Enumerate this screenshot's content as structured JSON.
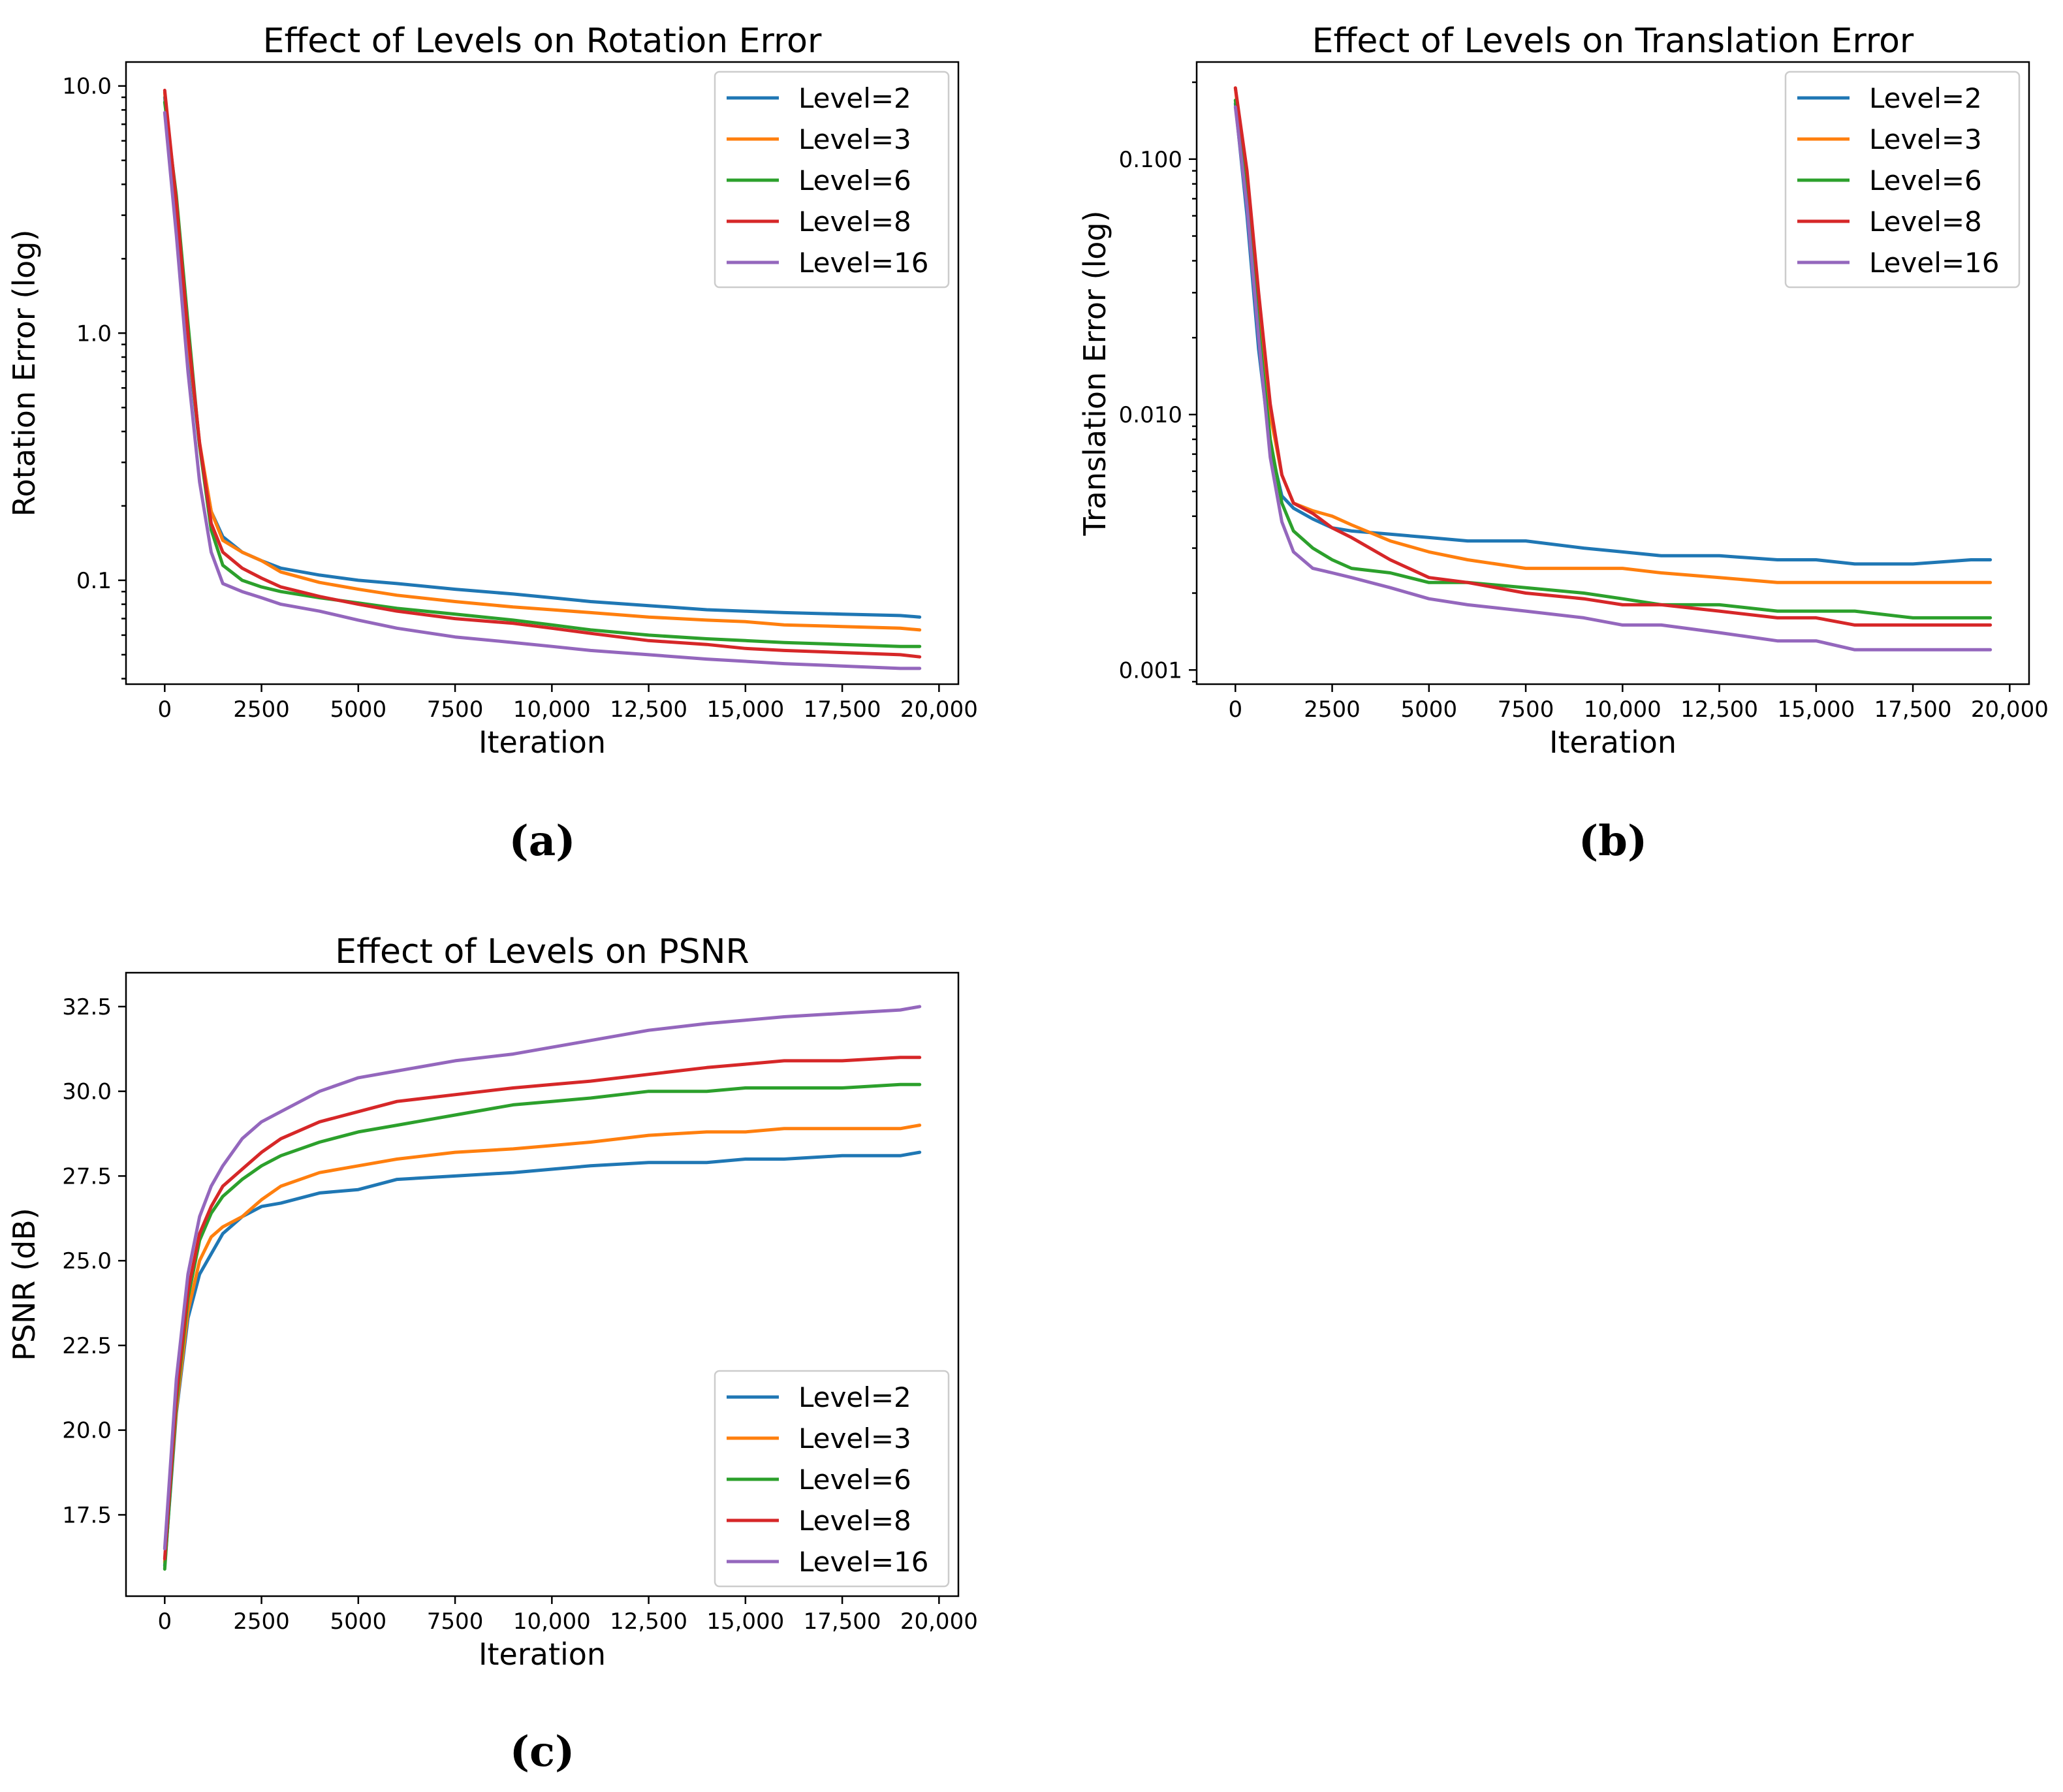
{
  "chart_data": [
    {
      "id": "a",
      "type": "line",
      "title": "Effect of Levels on Rotation Error",
      "xlabel": "Iteration",
      "ylabel": "Rotation Error (log)",
      "yscale": "log",
      "xlim": [
        -1000,
        20500
      ],
      "ylim": [
        0.038,
        12.5
      ],
      "x_ticks": [
        0,
        2500,
        5000,
        7500,
        10000,
        12500,
        15000,
        17500,
        20000
      ],
      "x_tick_labels": [
        "0",
        "2500",
        "5000",
        "7500",
        "10,000",
        "12,500",
        "15,000",
        "17,500",
        "20,000"
      ],
      "y_ticks": [
        0.1,
        1.0,
        10.0
      ],
      "y_tick_labels": [
        "0.1",
        "1.0",
        "10.0"
      ],
      "legend_position": "top-right",
      "caption": "(a)",
      "x": [
        0,
        300,
        600,
        900,
        1200,
        1500,
        2000,
        2500,
        3000,
        4000,
        5000,
        6000,
        7500,
        9000,
        10000,
        11000,
        12500,
        14000,
        15000,
        16000,
        17500,
        19000,
        19500
      ],
      "series": [
        {
          "name": "Level=2",
          "color": "#1f77b4",
          "values": [
            9.0,
            3.0,
            0.9,
            0.35,
            0.19,
            0.15,
            0.13,
            0.12,
            0.112,
            0.105,
            0.1,
            0.097,
            0.092,
            0.088,
            0.085,
            0.082,
            0.079,
            0.076,
            0.075,
            0.074,
            0.073,
            0.072,
            0.071
          ]
        },
        {
          "name": "Level=3",
          "color": "#ff7f0e",
          "values": [
            9.4,
            3.2,
            0.95,
            0.36,
            0.19,
            0.145,
            0.13,
            0.12,
            0.108,
            0.098,
            0.092,
            0.087,
            0.082,
            0.078,
            0.076,
            0.074,
            0.071,
            0.069,
            0.068,
            0.066,
            0.065,
            0.064,
            0.063
          ]
        },
        {
          "name": "Level=6",
          "color": "#2ca02c",
          "values": [
            8.6,
            3.6,
            1.1,
            0.35,
            0.16,
            0.115,
            0.1,
            0.094,
            0.09,
            0.085,
            0.081,
            0.077,
            0.073,
            0.069,
            0.066,
            0.063,
            0.06,
            0.058,
            0.057,
            0.056,
            0.055,
            0.054,
            0.054
          ]
        },
        {
          "name": "Level=8",
          "color": "#d62728",
          "values": [
            9.6,
            3.4,
            1.0,
            0.36,
            0.17,
            0.13,
            0.112,
            0.102,
            0.094,
            0.086,
            0.08,
            0.075,
            0.07,
            0.067,
            0.064,
            0.061,
            0.057,
            0.055,
            0.053,
            0.052,
            0.051,
            0.05,
            0.049
          ]
        },
        {
          "name": "Level=16",
          "color": "#9467bd",
          "values": [
            7.8,
            2.5,
            0.7,
            0.25,
            0.13,
            0.097,
            0.09,
            0.085,
            0.08,
            0.075,
            0.069,
            0.064,
            0.059,
            0.056,
            0.054,
            0.052,
            0.05,
            0.048,
            0.047,
            0.046,
            0.045,
            0.044,
            0.044
          ]
        }
      ]
    },
    {
      "id": "b",
      "type": "line",
      "title": "Effect of Levels on Translation Error",
      "xlabel": "Iteration",
      "ylabel": "Translation Error (log)",
      "yscale": "log",
      "xlim": [
        -1000,
        20500
      ],
      "ylim": [
        0.00088,
        0.24
      ],
      "x_ticks": [
        0,
        2500,
        5000,
        7500,
        10000,
        12500,
        15000,
        17500,
        20000
      ],
      "x_tick_labels": [
        "0",
        "2500",
        "5000",
        "7500",
        "10,000",
        "12,500",
        "15,000",
        "17,500",
        "20,000"
      ],
      "y_ticks": [
        0.001,
        0.01,
        0.1
      ],
      "y_tick_labels": [
        "0.001",
        "0.010",
        "0.100"
      ],
      "legend_position": "top-right",
      "caption": "(b)",
      "x": [
        0,
        300,
        600,
        900,
        1200,
        1500,
        2000,
        2500,
        3000,
        4000,
        5000,
        6000,
        7500,
        9000,
        10000,
        11000,
        12500,
        14000,
        15000,
        16000,
        17500,
        19000,
        19500
      ],
      "series": [
        {
          "name": "Level=2",
          "color": "#1f77b4",
          "values": [
            0.165,
            0.06,
            0.018,
            0.0075,
            0.0048,
            0.0043,
            0.0039,
            0.0036,
            0.0035,
            0.0034,
            0.0033,
            0.0032,
            0.0032,
            0.003,
            0.0029,
            0.0028,
            0.0028,
            0.0027,
            0.0027,
            0.0026,
            0.0026,
            0.0027,
            0.0027
          ]
        },
        {
          "name": "Level=3",
          "color": "#ff7f0e",
          "values": [
            0.19,
            0.075,
            0.025,
            0.01,
            0.0058,
            0.0045,
            0.0042,
            0.004,
            0.0037,
            0.0032,
            0.0029,
            0.0027,
            0.0025,
            0.0025,
            0.0025,
            0.0024,
            0.0023,
            0.0022,
            0.0022,
            0.0022,
            0.0022,
            0.0022,
            0.0022
          ]
        },
        {
          "name": "Level=6",
          "color": "#2ca02c",
          "values": [
            0.17,
            0.07,
            0.022,
            0.008,
            0.0045,
            0.0035,
            0.003,
            0.0027,
            0.0025,
            0.0024,
            0.0022,
            0.0022,
            0.0021,
            0.002,
            0.0019,
            0.0018,
            0.0018,
            0.0017,
            0.0017,
            0.0017,
            0.0016,
            0.0016,
            0.0016
          ]
        },
        {
          "name": "Level=8",
          "color": "#d62728",
          "values": [
            0.19,
            0.09,
            0.03,
            0.011,
            0.0058,
            0.0045,
            0.0041,
            0.0036,
            0.0033,
            0.0027,
            0.0023,
            0.0022,
            0.002,
            0.0019,
            0.0018,
            0.0018,
            0.0017,
            0.0016,
            0.0016,
            0.0015,
            0.0015,
            0.0015,
            0.0015
          ]
        },
        {
          "name": "Level=16",
          "color": "#9467bd",
          "values": [
            0.16,
            0.065,
            0.02,
            0.0068,
            0.0038,
            0.0029,
            0.0025,
            0.0024,
            0.0023,
            0.0021,
            0.0019,
            0.0018,
            0.0017,
            0.0016,
            0.0015,
            0.0015,
            0.0014,
            0.0013,
            0.0013,
            0.0012,
            0.0012,
            0.0012,
            0.0012
          ]
        }
      ]
    },
    {
      "id": "c",
      "type": "line",
      "title": "Effect of Levels on PSNR",
      "xlabel": "Iteration",
      "ylabel": "PSNR (dB)",
      "yscale": "linear",
      "xlim": [
        -1000,
        20500
      ],
      "ylim": [
        15.1,
        33.5
      ],
      "x_ticks": [
        0,
        2500,
        5000,
        7500,
        10000,
        12500,
        15000,
        17500,
        20000
      ],
      "x_tick_labels": [
        "0",
        "2500",
        "5000",
        "7500",
        "10,000",
        "12,500",
        "15,000",
        "17,500",
        "20,000"
      ],
      "y_ticks": [
        17.5,
        20.0,
        22.5,
        25.0,
        27.5,
        30.0,
        32.5
      ],
      "y_tick_labels": [
        "17.5",
        "20.0",
        "22.5",
        "25.0",
        "27.5",
        "30.0",
        "32.5"
      ],
      "legend_position": "bottom-right",
      "caption": "(c)",
      "x": [
        0,
        300,
        600,
        900,
        1200,
        1500,
        2000,
        2500,
        3000,
        4000,
        5000,
        6000,
        7500,
        9000,
        10000,
        11000,
        12500,
        14000,
        15000,
        16000,
        17500,
        19000,
        19500
      ],
      "series": [
        {
          "name": "Level=2",
          "color": "#1f77b4",
          "values": [
            16.0,
            20.5,
            23.3,
            24.6,
            25.2,
            25.8,
            26.3,
            26.6,
            26.7,
            27.0,
            27.1,
            27.4,
            27.5,
            27.6,
            27.7,
            27.8,
            27.9,
            27.9,
            28.0,
            28.0,
            28.1,
            28.1,
            28.2
          ]
        },
        {
          "name": "Level=3",
          "color": "#ff7f0e",
          "values": [
            16.1,
            20.6,
            23.5,
            25.0,
            25.7,
            26.0,
            26.3,
            26.8,
            27.2,
            27.6,
            27.8,
            28.0,
            28.2,
            28.3,
            28.4,
            28.5,
            28.7,
            28.8,
            28.8,
            28.9,
            28.9,
            28.9,
            29.0
          ]
        },
        {
          "name": "Level=6",
          "color": "#2ca02c",
          "values": [
            15.9,
            20.8,
            23.9,
            25.6,
            26.4,
            26.9,
            27.4,
            27.8,
            28.1,
            28.5,
            28.8,
            29.0,
            29.3,
            29.6,
            29.7,
            29.8,
            30.0,
            30.0,
            30.1,
            30.1,
            30.1,
            30.2,
            30.2
          ]
        },
        {
          "name": "Level=8",
          "color": "#d62728",
          "values": [
            16.2,
            21.0,
            24.1,
            25.8,
            26.6,
            27.2,
            27.7,
            28.2,
            28.6,
            29.1,
            29.4,
            29.7,
            29.9,
            30.1,
            30.2,
            30.3,
            30.5,
            30.7,
            30.8,
            30.9,
            30.9,
            31.0,
            31.0
          ]
        },
        {
          "name": "Level=16",
          "color": "#9467bd",
          "values": [
            16.5,
            21.5,
            24.6,
            26.3,
            27.2,
            27.8,
            28.6,
            29.1,
            29.4,
            30.0,
            30.4,
            30.6,
            30.9,
            31.1,
            31.3,
            31.5,
            31.8,
            32.0,
            32.1,
            32.2,
            32.3,
            32.4,
            32.5
          ]
        }
      ]
    }
  ]
}
